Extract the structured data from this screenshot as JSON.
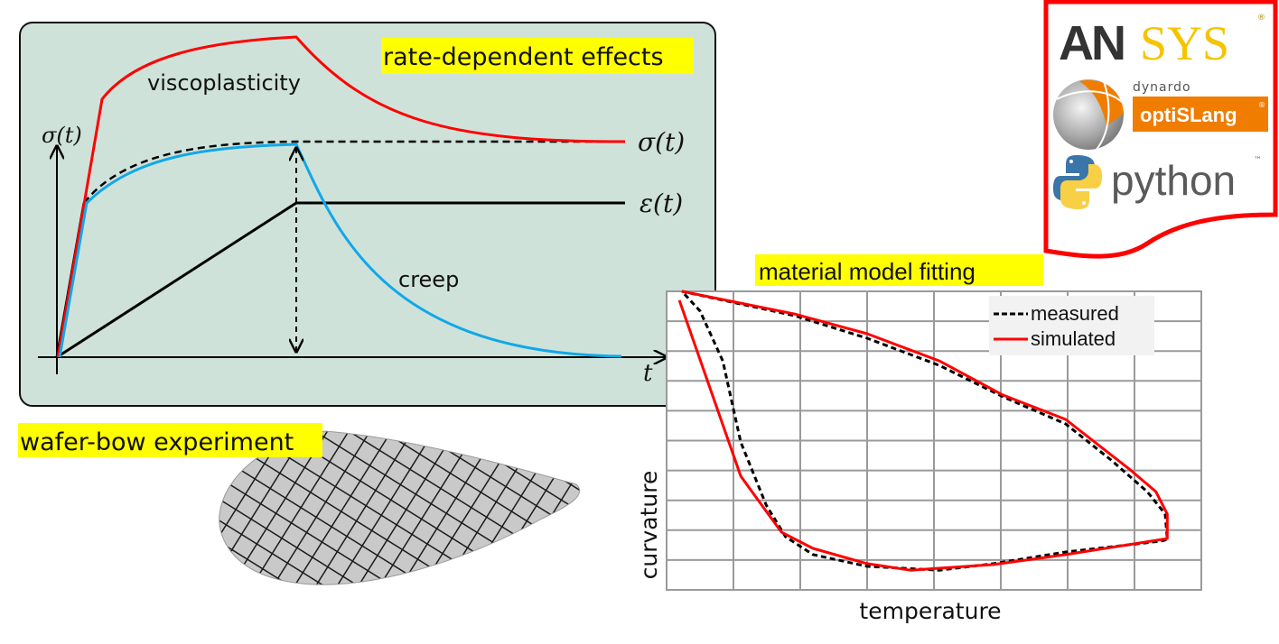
{
  "colors": {
    "panel_fill": "#cfe2da",
    "highlight": "#ffff00",
    "red": "#ff0000",
    "blue": "#10a8e8",
    "black": "#000000",
    "grid": "#9a9a9a",
    "ansys_dark": "#333333",
    "ansys_yellow": "#f5c400",
    "optislang_orange": "#f07d00",
    "python_gray": "#5a5a5a"
  },
  "rate_panel": {
    "title": "rate-dependent effects",
    "y_axis_label": "σ(t)",
    "x_axis_label": "t",
    "curve_labels": {
      "viscoplasticity": "viscoplasticity",
      "creep": "creep",
      "stress": "σ(t)",
      "strain": "ε(t)"
    }
  },
  "wafer": {
    "title": "wafer-bow experiment"
  },
  "logos": {
    "ansys_dark": "AN",
    "ansys_yellow": "SYS",
    "ansys_mark": "®",
    "dynardo": "dynardo",
    "optislang": "optiSLang",
    "optislang_mark": "®",
    "python": "python",
    "python_mark": "™"
  },
  "chart_data": {
    "type": "line",
    "title": "material model fitting",
    "xlabel": "temperature",
    "ylabel": "curvature",
    "xlim": [
      0,
      8
    ],
    "ylim": [
      0,
      10
    ],
    "grid": true,
    "legend_position": "top-right",
    "series": [
      {
        "name": "measured",
        "style": "dashed",
        "color": "#000000",
        "points": [
          [
            0.23,
            10.0
          ],
          [
            1.92,
            9.18
          ],
          [
            3.0,
            8.43
          ],
          [
            4.08,
            7.52
          ],
          [
            5.03,
            6.47
          ],
          [
            5.97,
            5.56
          ],
          [
            6.65,
            4.35
          ],
          [
            7.19,
            3.29
          ],
          [
            7.46,
            2.54
          ],
          [
            7.49,
            1.69
          ],
          [
            7.39,
            1.63
          ],
          [
            5.97,
            1.27
          ],
          [
            4.89,
            0.88
          ],
          [
            4.08,
            0.66
          ],
          [
            3.0,
            0.79
          ],
          [
            2.19,
            1.18
          ],
          [
            1.78,
            1.78
          ],
          [
            1.49,
            2.84
          ],
          [
            1.11,
            4.95
          ],
          [
            0.84,
            7.67
          ],
          [
            0.5,
            9.34
          ],
          [
            0.23,
            10.0
          ]
        ]
      },
      {
        "name": "simulated",
        "style": "solid",
        "color": "#ff0000",
        "points": [
          [
            0.23,
            10.0
          ],
          [
            1.92,
            9.24
          ],
          [
            3.0,
            8.58
          ],
          [
            4.08,
            7.67
          ],
          [
            5.03,
            6.53
          ],
          [
            5.97,
            5.71
          ],
          [
            6.92,
            4.05
          ],
          [
            7.32,
            3.29
          ],
          [
            7.49,
            2.54
          ],
          [
            7.49,
            1.72
          ],
          [
            5.97,
            1.18
          ],
          [
            4.89,
            0.85
          ],
          [
            3.65,
            0.66
          ],
          [
            3.0,
            0.88
          ],
          [
            2.19,
            1.39
          ],
          [
            1.72,
            1.93
          ],
          [
            1.49,
            2.63
          ],
          [
            1.11,
            3.81
          ],
          [
            0.19,
            9.7
          ]
        ]
      }
    ]
  }
}
